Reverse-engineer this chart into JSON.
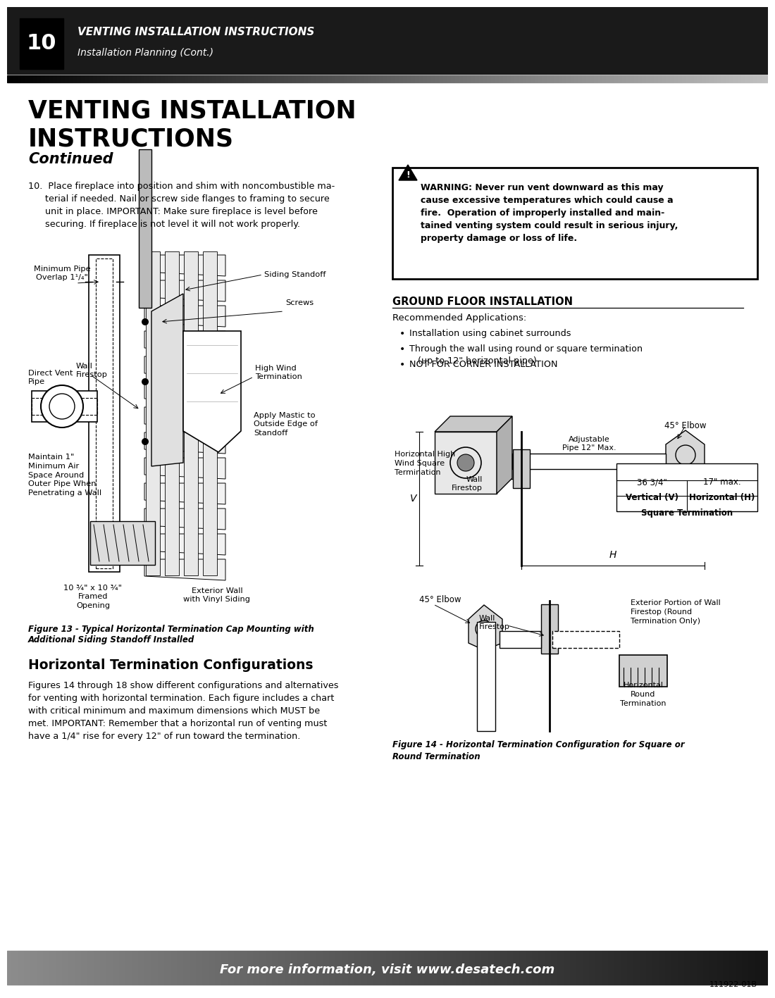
{
  "page_number": "10",
  "header_title": "VENTING INSTALLATION INSTRUCTIONS",
  "header_subtitle": "Installation Planning (Cont.)",
  "section_title_line1": "VENTING INSTALLATION",
  "section_title_line2": "INSTRUCTIONS",
  "section_subtitle": "Continued",
  "body_text_10": "10.  Place fireplace into position and shim with noncombustible ma-\n      terial if needed. Nail or screw side flanges to framing to secure\n      unit in place. IMPORTANT: Make sure fireplace is level before\n      securing. If fireplace is not level it will not work properly.",
  "warning_text_bold": "WARNING: Never run vent downward as this may cause excessive temperatures which could cause a fire.  Operation of improperly installed and main-tained venting system could result in serious injury, property damage or loss of life.",
  "ground_floor_title": "GROUND FLOOR INSTALLATION",
  "recommended_apps_title": "Recommended Applications:",
  "bullet1": "Installation using cabinet surrounds",
  "bullet2": "Through the wall using round or square termination\n   (up to 12\" horizontal pipe)",
  "bullet3": "NOT FOR CORNER INSTALLATION",
  "fig13_caption": "Figure 13 - Typical Horizontal Termination Cap Mounting with\nAdditional Siding Standoff Installed",
  "horiz_term_title": "Horizontal Termination Configurations",
  "horiz_term_body": "Figures 14 through 18 show different configurations and alternatives\nfor venting with horizontal termination. Each figure includes a chart\nwith critical minimum and maximum dimensions which MUST be\nmet. IMPORTANT: Remember that a horizontal run of venting must\nhave a 1/4\" rise for every 12\" of run toward the termination.",
  "fig14_caption": "Figure 14 - Horizontal Termination Configuration for Square or\nRound Termination",
  "square_term_label": "Square Termination",
  "vertical_v_label": "Vertical (V)",
  "horizontal_h_label": "Horizontal (H)",
  "vertical_v_value": "36 3/4\"",
  "horizontal_h_value": "17\" max.",
  "footer_text": "For more information, visit www.desatech.com",
  "doc_number": "111922-01B",
  "bg_color": "#ffffff",
  "text_color": "#000000"
}
